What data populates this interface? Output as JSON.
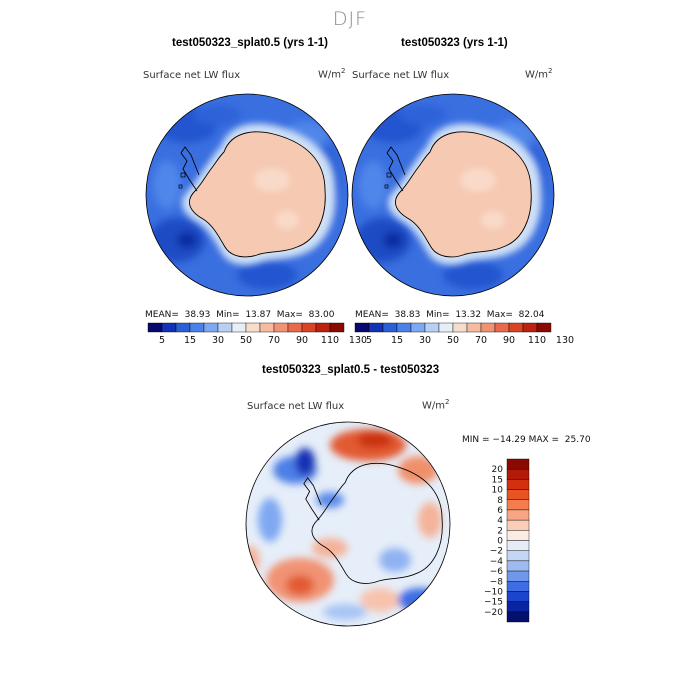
{
  "season": "DJF",
  "units_base": "W/m",
  "units_exp": "2",
  "panels": [
    {
      "title": "test050323_splat0.5 (yrs 1-1)",
      "field": "Surface net LW flux",
      "stats": "MEAN=  38.93  Min=  13.87  Max=  83.00"
    },
    {
      "title": "test050323 (yrs 1-1)",
      "field": "Surface net LW flux",
      "stats": "MEAN=  38.83  Min=  13.32  Max=  82.04"
    },
    {
      "title": "test050323_splat0.5 - test050323",
      "field": "Surface net LW flux",
      "stats": "MIN = −14.29 MAX =  25.70"
    }
  ],
  "chart_data": [
    {
      "type": "heatmap",
      "projection": "south-polar-stereographic",
      "title": "test050323_splat0.5 (yrs 1-1)",
      "variable": "Surface net LW flux",
      "units": "W/m2",
      "mean": 38.93,
      "min": 13.87,
      "max": 83.0,
      "colorbar_ticks": [
        "5",
        "15",
        "30",
        "50",
        "70",
        "90",
        "110",
        "130"
      ]
    },
    {
      "type": "heatmap",
      "projection": "south-polar-stereographic",
      "title": "test050323 (yrs 1-1)",
      "variable": "Surface net LW flux",
      "units": "W/m2",
      "mean": 38.83,
      "min": 13.32,
      "max": 82.04,
      "colorbar_ticks": [
        "5",
        "15",
        "30",
        "50",
        "70",
        "90",
        "110",
        "130"
      ]
    },
    {
      "type": "heatmap",
      "projection": "south-polar-stereographic",
      "title": "test050323_splat0.5 - test050323",
      "variable": "Surface net LW flux",
      "units": "W/m2",
      "min": -14.29,
      "max": 25.7,
      "colorbar_ticks": [
        "20",
        "15",
        "10",
        "8",
        "6",
        "4",
        "2",
        "0",
        "−2",
        "−4",
        "−6",
        "−8",
        "−10",
        "−15",
        "−20"
      ]
    }
  ],
  "colors": {
    "abs_scale": [
      "#08086e",
      "#1233b6",
      "#2a5fd6",
      "#4a82ea",
      "#7fa8f2",
      "#b8d0f6",
      "#e6eef8",
      "#f8dccb",
      "#f6bba0",
      "#f19373",
      "#e86a48",
      "#d94424",
      "#bd2210",
      "#8a0a02"
    ],
    "diff_scale": [
      "#8a0a02",
      "#b31a08",
      "#d3300f",
      "#e85421",
      "#f47c4f",
      "#f8a583",
      "#fbcdb6",
      "#fcebe2",
      "#e4ecf8",
      "#c4d6f5",
      "#9dbbf1",
      "#6f98ec",
      "#3f6ee4",
      "#1b45cd",
      "#0a25a4",
      "#04106e"
    ],
    "ocean_abs": "#3a6fe0",
    "land_abs": "#f6c9b2",
    "land_diff": "#e8eef9",
    "coast": "#000000"
  }
}
